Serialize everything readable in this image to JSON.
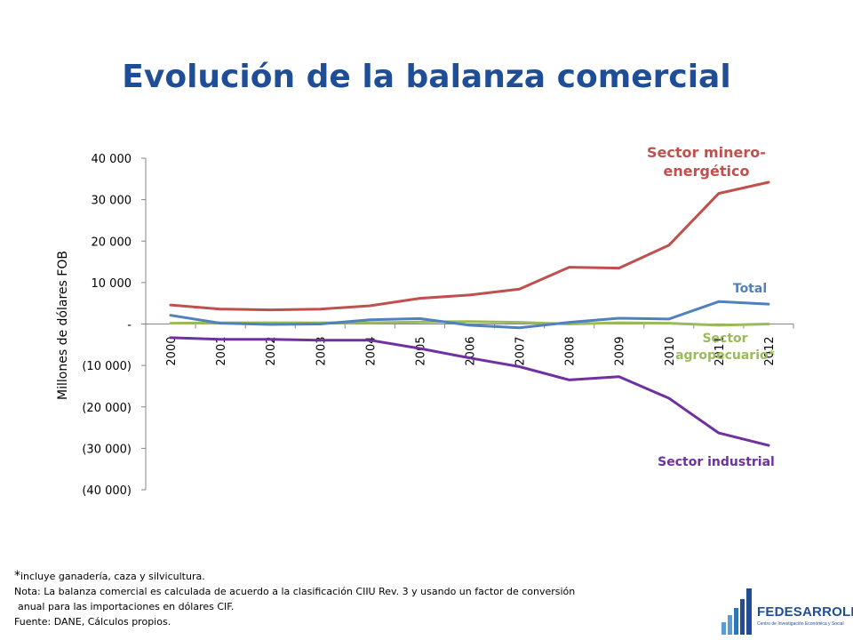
{
  "page": {
    "title": "Evolución de la balanza comercial",
    "notes": {
      "star": "*",
      "line1": "incluye ganadería, caza y silvicultura.",
      "line2": "Nota: La balanza comercial es calculada de acuerdo a la clasificación CIIU Rev. 3 y usando un factor de conversión",
      "line3": "anual para las importaciones en dólares CIF.",
      "line4": "Fuente: DANE, Cálculos propios."
    },
    "logo": {
      "name": "FEDESARROLLO",
      "subtitle": "Centro de Investigación Económica y Social",
      "color": "#1F4E96"
    }
  },
  "chart_data": {
    "type": "line",
    "title": "",
    "ylabel": "Millones de dólares FOB",
    "xlabel": "",
    "x": [
      "2000",
      "2001",
      "2002",
      "2003",
      "2004",
      "2005",
      "2006",
      "2007",
      "2008",
      "2009",
      "2010",
      "2011",
      "2012"
    ],
    "ylim": [
      -40000,
      40000
    ],
    "yticks": [
      40000,
      30000,
      20000,
      10000,
      0,
      -10000,
      -20000,
      -30000,
      -40000
    ],
    "ytick_labels": [
      "40 000",
      "30 000",
      "20 000",
      "10 000",
      "-",
      "(10 000)",
      "(20 000)",
      "(30 000)",
      "(40 000)"
    ],
    "grid": false,
    "legend": "direct-labels",
    "series": [
      {
        "name": "Sector minero-energético",
        "label_lines": [
          "Sector minero-",
          "energético"
        ],
        "color": "#C0504D",
        "values": [
          4600,
          3600,
          3400,
          3600,
          4400,
          6200,
          7000,
          8400,
          13700,
          13500,
          19000,
          31500,
          34200
        ]
      },
      {
        "name": "Total",
        "label_lines": [
          "Total"
        ],
        "color": "#4F81BD",
        "values": [
          2100,
          200,
          -100,
          0,
          1000,
          1300,
          -300,
          -900,
          400,
          1400,
          1200,
          5400,
          4800
        ]
      },
      {
        "name": "Sector agropecuario*",
        "label_lines": [
          "Sector",
          "agropecuario*"
        ],
        "color": "#9BBB59",
        "values": [
          200,
          300,
          300,
          300,
          300,
          500,
          600,
          400,
          0,
          300,
          200,
          -300,
          0
        ]
      },
      {
        "name": "Sector industrial",
        "label_lines": [
          "Sector industrial"
        ],
        "color": "#7030A0",
        "values": [
          -3300,
          -3700,
          -3700,
          -3900,
          -3900,
          -5900,
          -8200,
          -10300,
          -13500,
          -12700,
          -17900,
          -26300,
          -29300
        ]
      }
    ]
  }
}
